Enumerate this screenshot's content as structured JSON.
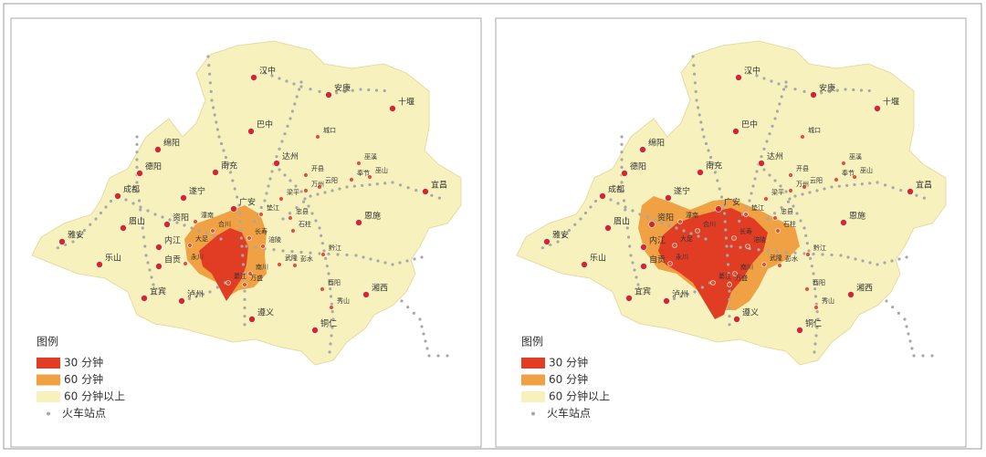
{
  "legend": {
    "title": "图例",
    "items": [
      "30 分钟",
      "60 分钟",
      "60 分钟以上",
      "火车站点"
    ]
  },
  "cities": [
    "汉中",
    "安康",
    "十堰",
    "巴中",
    "城口",
    "绵阳",
    "达州",
    "巫溪",
    "南充",
    "德阳",
    "开县",
    "巫山",
    "奉节",
    "云阳",
    "万州",
    "成都",
    "遂宁",
    "梁平",
    "宜昌",
    "广安",
    "垫江",
    "忠县",
    "资阳",
    "眉山",
    "恩施",
    "石柱",
    "雅安",
    "内江",
    "黔江",
    "乐山",
    "自贡",
    "武隆",
    "彭水",
    "宜宾",
    "泸州",
    "酉阳",
    "湘西",
    "秀山",
    "遵义",
    "铜仁",
    "潼南",
    "合川",
    "长寿",
    "涪陵",
    "大足",
    "永川",
    "南川",
    "綦江",
    "万盛"
  ]
}
